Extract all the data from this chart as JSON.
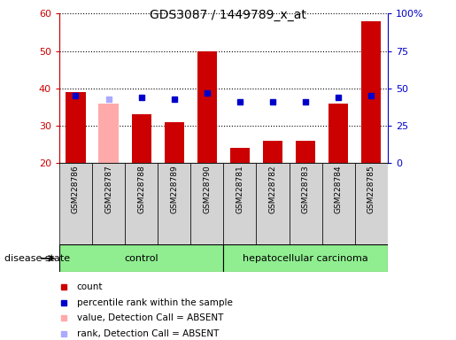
{
  "title": "GDS3087 / 1449789_x_at",
  "samples": [
    "GSM228786",
    "GSM228787",
    "GSM228788",
    "GSM228789",
    "GSM228790",
    "GSM228781",
    "GSM228782",
    "GSM228783",
    "GSM228784",
    "GSM228785"
  ],
  "count_values": [
    39,
    36,
    33,
    31,
    50,
    24,
    26,
    26,
    36,
    58
  ],
  "count_absent": [
    false,
    true,
    false,
    false,
    false,
    false,
    false,
    false,
    false,
    false
  ],
  "percentile_values": [
    45,
    43,
    44,
    43,
    47,
    41,
    41,
    41,
    44,
    45
  ],
  "percentile_absent": [
    false,
    true,
    false,
    false,
    false,
    false,
    false,
    false,
    false,
    false
  ],
  "ylim_left": [
    20,
    60
  ],
  "ylim_right": [
    0,
    100
  ],
  "left_ticks": [
    20,
    30,
    40,
    50,
    60
  ],
  "right_ticks": [
    0,
    25,
    50,
    75,
    100
  ],
  "right_tick_labels": [
    "0",
    "25",
    "50",
    "75",
    "100%"
  ],
  "left_color": "#cc0000",
  "right_color": "#0000cc",
  "bar_color": "#cc0000",
  "bar_absent_color": "#ffaaaa",
  "dot_color": "#0000cc",
  "dot_absent_color": "#aaaaff",
  "plot_bg": "#ffffff",
  "label_bg": "#d3d3d3",
  "group_color": "#90EE90",
  "control_count": 5,
  "disease_state_label": "disease state"
}
